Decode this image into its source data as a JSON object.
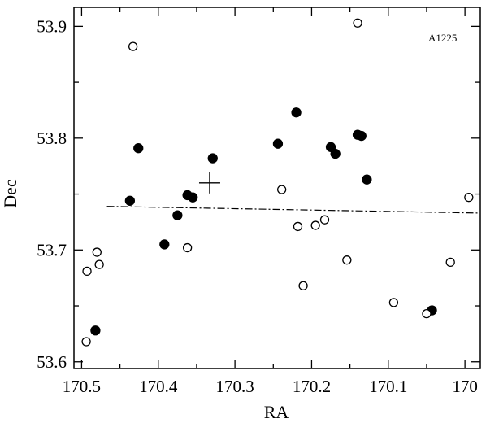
{
  "chart_data": {
    "type": "scatter",
    "title": "",
    "annotation": "A1225",
    "xlabel": "RA",
    "ylabel": "Dec",
    "xlim": [
      170.51,
      169.98
    ],
    "ylim": [
      53.594,
      53.917
    ],
    "x_reversed": true,
    "x_ticks": [
      170.5,
      170.4,
      170.3,
      170.2,
      170.1,
      170
    ],
    "x_tick_labels": [
      "170.5",
      "170.4",
      "170.3",
      "170.2",
      "170.1",
      "170"
    ],
    "y_ticks": [
      53.6,
      53.7,
      53.8,
      53.9
    ],
    "y_tick_labels": [
      "53.6",
      "53.7",
      "53.8",
      "53.9"
    ],
    "grid": false,
    "series": [
      {
        "marker": "filled-circle",
        "color": "#000000",
        "points": [
          {
            "x": 170.482,
            "y": 53.628
          },
          {
            "x": 170.437,
            "y": 53.744
          },
          {
            "x": 170.426,
            "y": 53.791
          },
          {
            "x": 170.392,
            "y": 53.705
          },
          {
            "x": 170.375,
            "y": 53.731
          },
          {
            "x": 170.362,
            "y": 53.749
          },
          {
            "x": 170.355,
            "y": 53.747
          },
          {
            "x": 170.329,
            "y": 53.782
          },
          {
            "x": 170.244,
            "y": 53.795
          },
          {
            "x": 170.22,
            "y": 53.823
          },
          {
            "x": 170.175,
            "y": 53.792
          },
          {
            "x": 170.169,
            "y": 53.786
          },
          {
            "x": 170.14,
            "y": 53.803
          },
          {
            "x": 170.135,
            "y": 53.802
          },
          {
            "x": 170.128,
            "y": 53.763
          },
          {
            "x": 170.043,
            "y": 53.646
          }
        ]
      },
      {
        "marker": "open-circle",
        "color": "#000000",
        "points": [
          {
            "x": 170.494,
            "y": 53.618
          },
          {
            "x": 170.493,
            "y": 53.681
          },
          {
            "x": 170.48,
            "y": 53.698
          },
          {
            "x": 170.477,
            "y": 53.687
          },
          {
            "x": 170.433,
            "y": 53.882
          },
          {
            "x": 170.362,
            "y": 53.702
          },
          {
            "x": 170.239,
            "y": 53.754
          },
          {
            "x": 170.218,
            "y": 53.721
          },
          {
            "x": 170.211,
            "y": 53.668
          },
          {
            "x": 170.195,
            "y": 53.722
          },
          {
            "x": 170.183,
            "y": 53.727
          },
          {
            "x": 170.154,
            "y": 53.691
          },
          {
            "x": 170.14,
            "y": 53.903
          },
          {
            "x": 170.093,
            "y": 53.653
          },
          {
            "x": 170.05,
            "y": 53.643
          },
          {
            "x": 170.019,
            "y": 53.689
          },
          {
            "x": 169.995,
            "y": 53.747
          }
        ]
      }
    ],
    "center_marker": {
      "marker": "plus",
      "x": 170.333,
      "y": 53.76
    },
    "line": {
      "style": "dash-dot",
      "points": [
        {
          "x": 170.467,
          "y": 53.739
        },
        {
          "x": 169.98,
          "y": 53.733
        }
      ]
    }
  }
}
